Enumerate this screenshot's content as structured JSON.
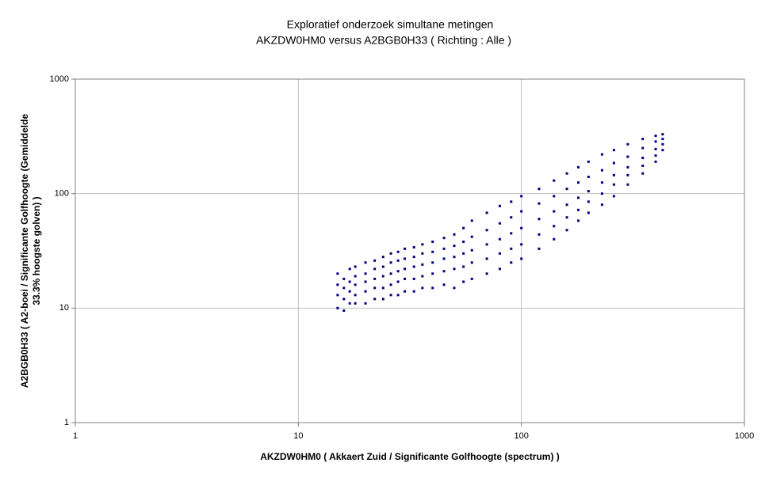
{
  "chart_data": {
    "type": "scatter",
    "title": "Exploratief onderzoek simultane metingen",
    "subtitle": "AKZDW0HM0 versus A2BGB0H33 ( Richting : Alle )",
    "x_label": "AKZDW0HM0  ( Akkaert Zuid / Significante Golfhoogte (spectrum) )",
    "y_label": [
      "A2BGB0H33  ( A2-boei / Significante Golfhoogte (Gemiddelde",
      "33.3% hoogste golven) )"
    ],
    "log_x": true,
    "log_y": true,
    "grid": true,
    "color": "#000080",
    "xlim": [
      1,
      1000
    ],
    "ylim": [
      1,
      1000
    ],
    "xticks": [
      1,
      10,
      100,
      1000
    ],
    "yticks": [
      1,
      10,
      100,
      1000
    ],
    "x": [
      15,
      15,
      15,
      15,
      16,
      16,
      16,
      16,
      17,
      17,
      17,
      17,
      18,
      18,
      18,
      18,
      18,
      20,
      20,
      20,
      20,
      20,
      22,
      22,
      22,
      22,
      22,
      24,
      24,
      24,
      24,
      24,
      26,
      26,
      26,
      26,
      26,
      28,
      28,
      28,
      28,
      28,
      30,
      30,
      30,
      30,
      30,
      33,
      33,
      33,
      33,
      33,
      36,
      36,
      36,
      36,
      36,
      40,
      40,
      40,
      40,
      40,
      45,
      45,
      45,
      45,
      45,
      50,
      50,
      50,
      50,
      50,
      55,
      55,
      55,
      55,
      55,
      60,
      60,
      60,
      60,
      60,
      70,
      70,
      70,
      70,
      70,
      80,
      80,
      80,
      80,
      80,
      90,
      90,
      90,
      90,
      90,
      100,
      100,
      100,
      100,
      100,
      120,
      120,
      120,
      120,
      120,
      140,
      140,
      140,
      140,
      140,
      160,
      160,
      160,
      160,
      160,
      180,
      180,
      180,
      180,
      180,
      200,
      200,
      200,
      200,
      200,
      230,
      230,
      230,
      230,
      230,
      260,
      260,
      260,
      260,
      260,
      300,
      300,
      300,
      300,
      300,
      350,
      350,
      350,
      350,
      350,
      400,
      400,
      400,
      400,
      400,
      430,
      430,
      430,
      430
    ],
    "values": [
      10,
      13,
      16,
      20,
      9.5,
      12,
      15,
      18,
      11,
      14,
      17,
      22,
      11,
      13,
      16,
      19,
      23,
      11,
      14,
      17,
      20,
      25,
      12,
      15,
      18,
      22,
      26,
      12,
      15,
      19,
      23,
      28,
      13,
      16,
      20,
      25,
      30,
      13,
      17,
      21,
      26,
      31,
      14,
      18,
      22,
      27,
      33,
      14,
      18,
      23,
      28,
      34,
      15,
      19,
      24,
      30,
      36,
      15,
      20,
      25,
      31,
      38,
      16,
      21,
      27,
      33,
      41,
      15,
      22,
      28,
      35,
      44,
      17,
      23,
      30,
      38,
      50,
      18,
      25,
      32,
      42,
      58,
      20,
      27,
      36,
      48,
      68,
      22,
      30,
      40,
      55,
      78,
      25,
      33,
      45,
      62,
      85,
      27,
      36,
      50,
      70,
      95,
      33,
      44,
      60,
      82,
      110,
      40,
      52,
      70,
      95,
      130,
      48,
      62,
      80,
      110,
      150,
      58,
      72,
      92,
      125,
      170,
      68,
      85,
      105,
      140,
      190,
      80,
      100,
      125,
      160,
      220,
      95,
      120,
      145,
      185,
      240,
      120,
      145,
      170,
      210,
      270,
      150,
      175,
      205,
      250,
      300,
      190,
      215,
      245,
      285,
      320,
      240,
      270,
      300,
      330
    ]
  }
}
